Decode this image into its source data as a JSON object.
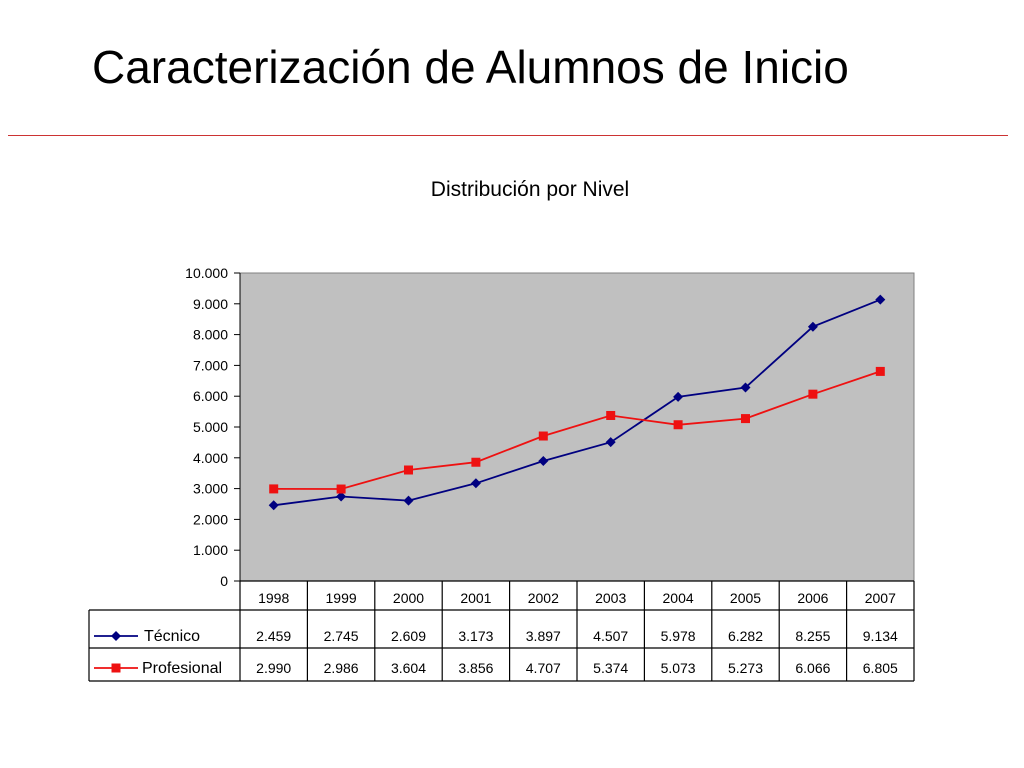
{
  "slide": {
    "title": "Caracterización de Alumnos de Inicio"
  },
  "colors": {
    "accent_rule": "#cc3333",
    "plot_background": "#c0c0c0"
  },
  "chart_data": {
    "type": "line",
    "title": "Distribución por Nivel",
    "xlabel": "",
    "ylabel": "",
    "categories": [
      "1998",
      "1999",
      "2000",
      "2001",
      "2002",
      "2003",
      "2004",
      "2005",
      "2006",
      "2007"
    ],
    "ylim": [
      0,
      10000
    ],
    "yticks": [
      0,
      1000,
      2000,
      3000,
      4000,
      5000,
      6000,
      7000,
      8000,
      9000,
      10000
    ],
    "ytick_labels": [
      "0",
      "1.000",
      "2.000",
      "3.000",
      "4.000",
      "5.000",
      "6.000",
      "7.000",
      "8.000",
      "9.000",
      "10.000"
    ],
    "grid": false,
    "legend": "data-table-left",
    "series": [
      {
        "name": "Técnico",
        "color": "#000080",
        "marker": "diamond",
        "values": [
          2459,
          2745,
          2609,
          3173,
          3897,
          4507,
          5978,
          6282,
          8255,
          9134
        ],
        "labels": [
          "2.459",
          "2.745",
          "2.609",
          "3.173",
          "3.897",
          "4.507",
          "5.978",
          "6.282",
          "8.255",
          "9.134"
        ]
      },
      {
        "name": "Profesional",
        "color": "#ee1111",
        "marker": "square",
        "values": [
          2990,
          2986,
          3604,
          3856,
          4707,
          5374,
          5073,
          5273,
          6066,
          6805
        ],
        "labels": [
          "2.990",
          "2.986",
          "3.604",
          "3.856",
          "4.707",
          "5.374",
          "5.073",
          "5.273",
          "6.066",
          "6.805"
        ]
      }
    ]
  }
}
